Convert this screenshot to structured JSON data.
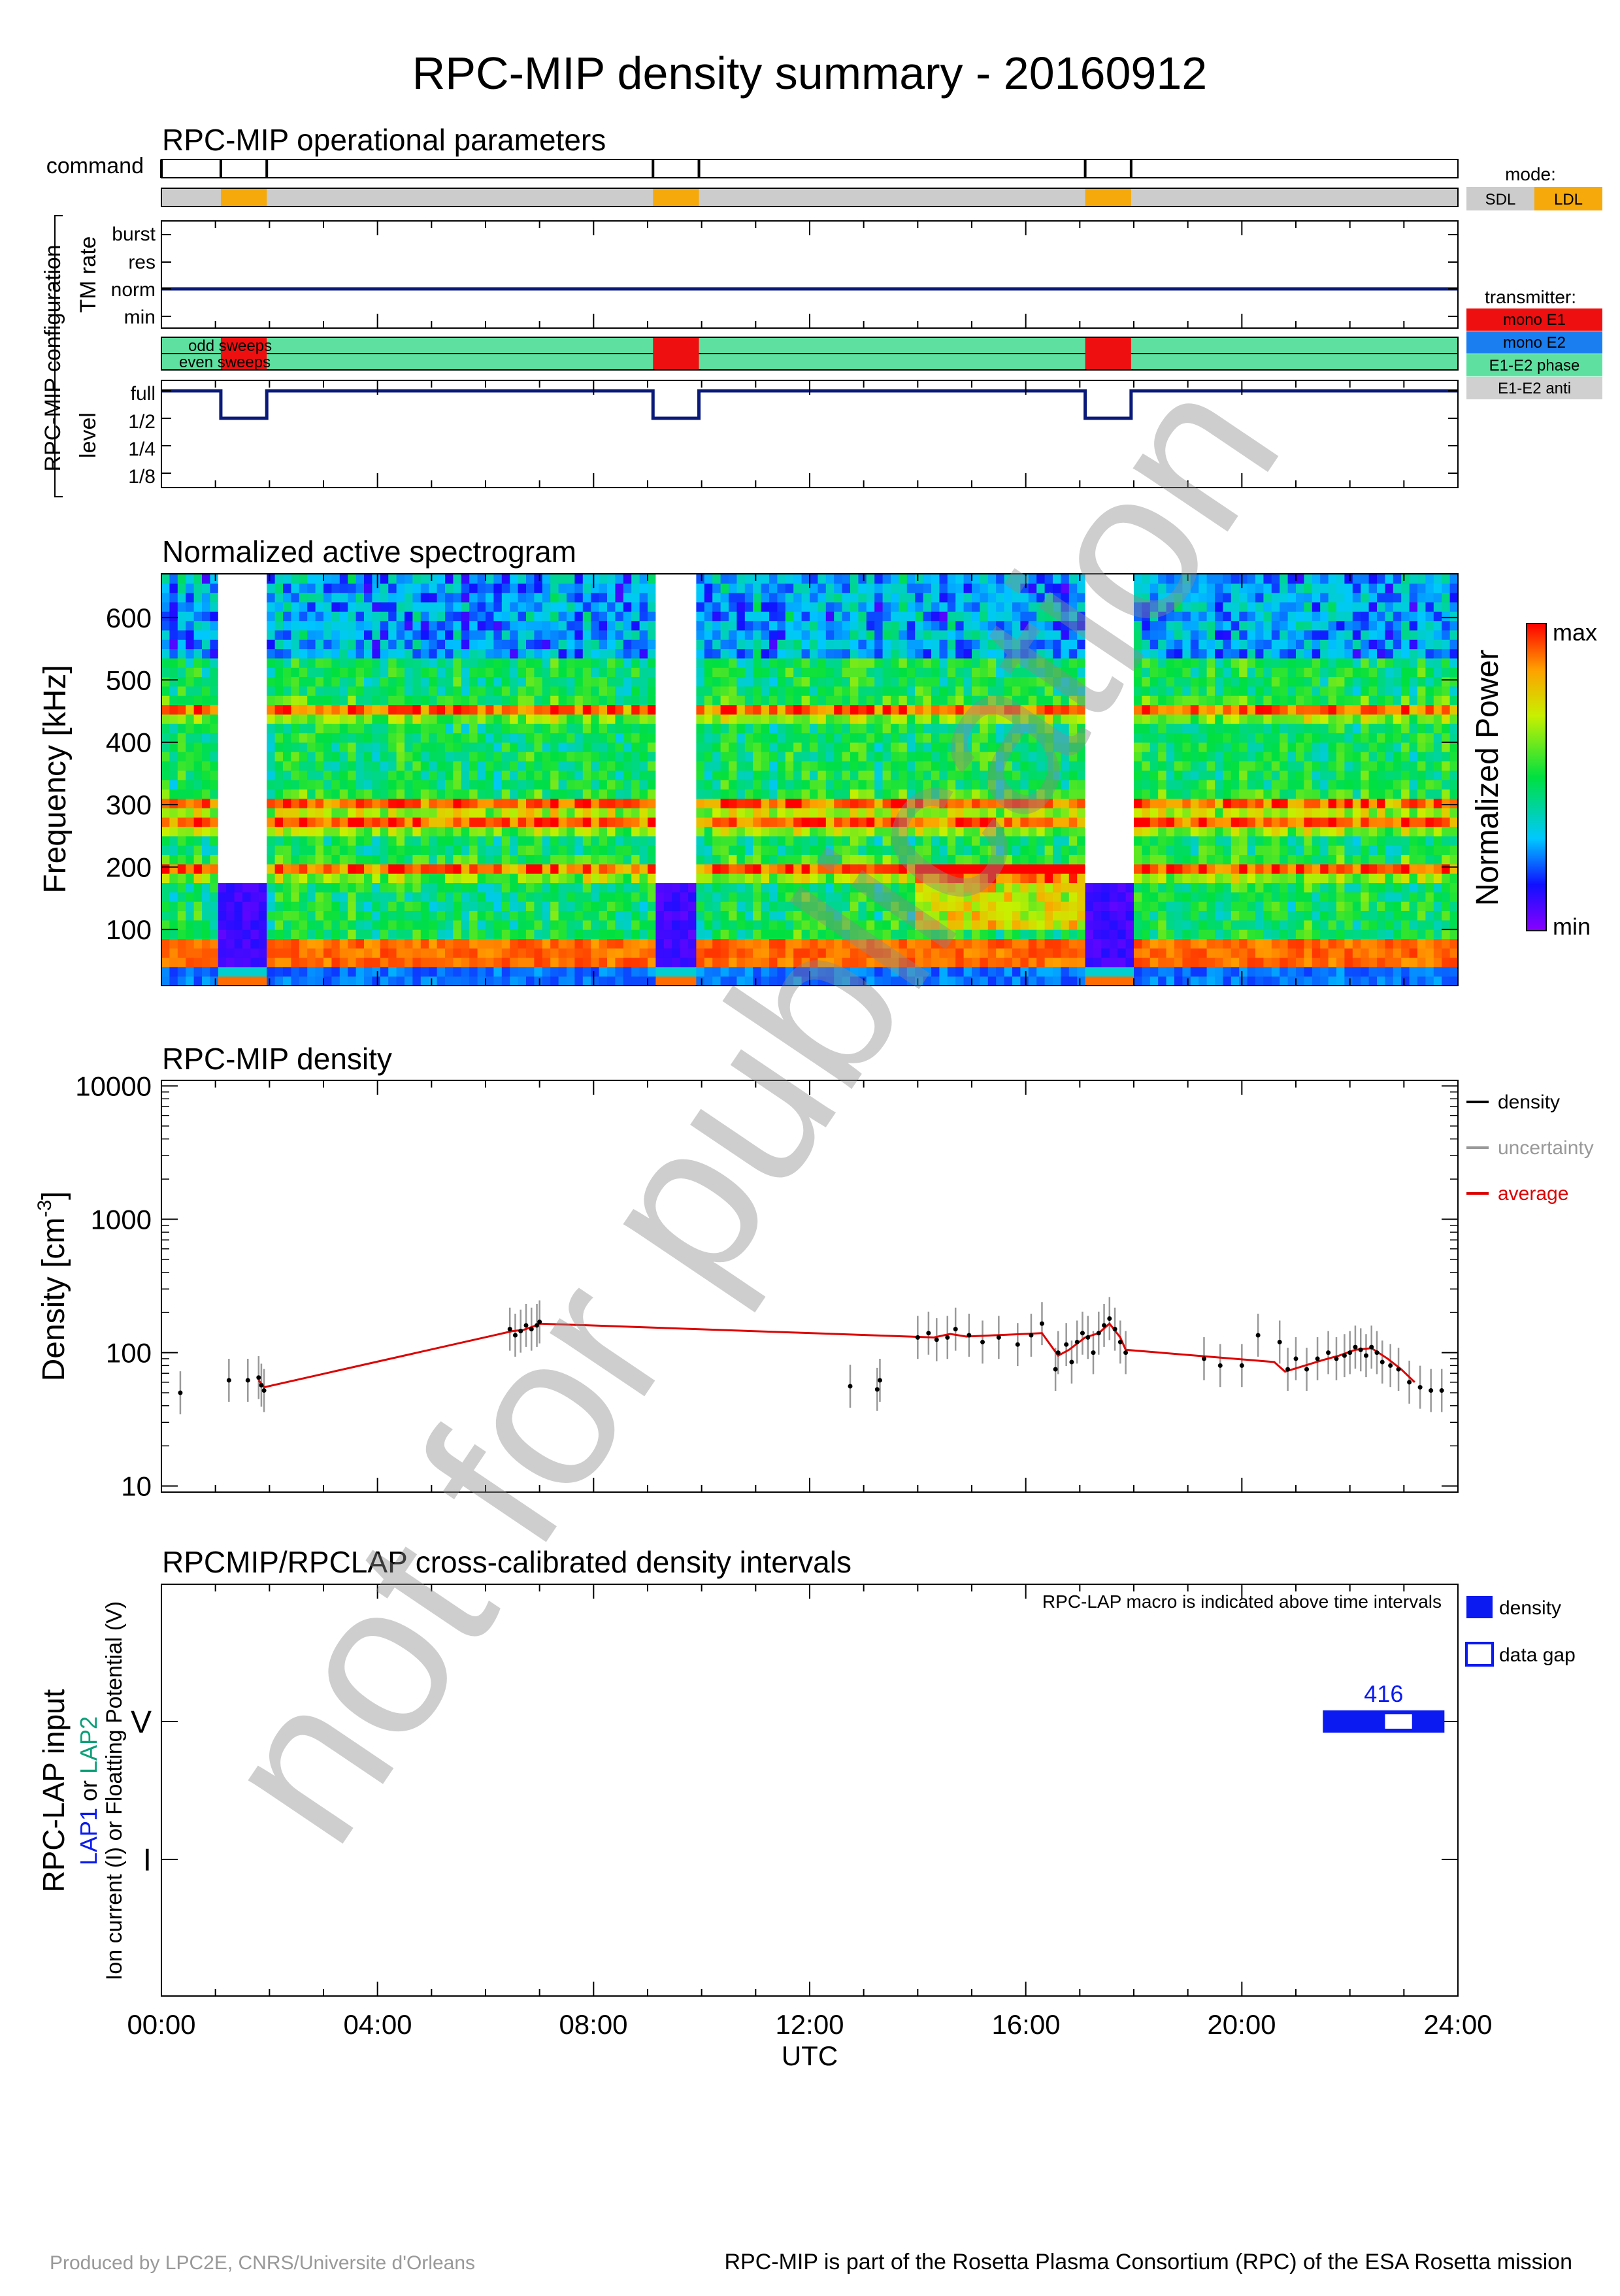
{
  "title": "RPC-MIP density summary - 20160912",
  "watermark": "not for publication",
  "footer": {
    "left": "Produced by LPC2E, CNRS/Universite d'Orleans",
    "right": "RPC-MIP is part of the Rosetta Plasma Consortium (RPC) of the ESA Rosetta mission"
  },
  "colors": {
    "sdl": "#cccccc",
    "ldl": "#f5a90a",
    "navy": "#0a1a7a",
    "mono_e1": "#ee1010",
    "mono_e2": "#1a7ef0",
    "e1e2_phase": "#5de0a0",
    "e1e2_anti": "#d0d0d0",
    "density": "#000000",
    "uncertainty": "#999999",
    "average": "#dd0000",
    "lap_density": "#0a1af0"
  },
  "ops": {
    "title": "RPC-MIP operational parameters",
    "command_label": "command",
    "group_label": "RPC-MIP configuration",
    "tm_rate_label": "TM rate",
    "tm_levels": [
      "burst",
      "res",
      "norm",
      "min"
    ],
    "sweeps": [
      "odd sweeps",
      "even sweeps"
    ],
    "level_label": "level",
    "levels": [
      "full",
      "1/2",
      "1/4",
      "1/8"
    ],
    "mode_title": "mode:",
    "modes": [
      "SDL",
      "LDL"
    ],
    "transmitter_title": "transmitter:",
    "transmitters": [
      "mono E1",
      "mono E2",
      "E1-E2 phase",
      "E1-E2 anti"
    ]
  },
  "spec": {
    "title": "Normalized active spectrogram",
    "ylabel": "Frequency [kHz]",
    "yticks": [
      "100",
      "200",
      "300",
      "400",
      "500",
      "600"
    ],
    "colorbar_label": "Normalized Power",
    "colorbar_max": "max",
    "colorbar_min": "min"
  },
  "density": {
    "title": "RPC-MIP density",
    "ylabel": "Density [cm",
    "ylabel_sup": "-3",
    "ylabel_end": "]",
    "yticks": [
      "10",
      "100",
      "1000",
      "10000"
    ],
    "legend": [
      "density",
      "uncertainty",
      "average"
    ]
  },
  "lap": {
    "title": "RPCMIP/RPCLAP cross-calibrated density intervals",
    "note": "RPC-LAP macro is indicated above time intervals",
    "ylabel1": "RPC-LAP input",
    "ylabel2_a": "LAP1",
    "ylabel2_b": " or ",
    "ylabel2_c": "LAP2",
    "ylabel3": "Ion current (I) or Floatting Potential (V)",
    "yticks": [
      "V",
      "I"
    ],
    "legend": [
      "density",
      "data gap"
    ],
    "macro_label": "416"
  },
  "xaxis": {
    "ticks": [
      "00:00",
      "04:00",
      "08:00",
      "12:00",
      "16:00",
      "20:00",
      "24:00"
    ],
    "label": "UTC"
  },
  "chart_data": [
    {
      "type": "timeline",
      "title": "RPC-MIP operational parameters",
      "x_unit": "hours UTC",
      "xlim": [
        0,
        24
      ],
      "commands_h": [
        0,
        1.1,
        1.95,
        9.1,
        9.95,
        17.1,
        17.95
      ],
      "ldl_intervals_h": [
        [
          1.1,
          1.95
        ],
        [
          9.1,
          9.95
        ],
        [
          17.1,
          17.95
        ]
      ],
      "tm_rate": "norm",
      "transmitter_default": "E1-E2 phase",
      "mono_e1_intervals_h": [
        [
          1.1,
          1.95
        ],
        [
          9.1,
          9.95
        ],
        [
          17.1,
          17.95
        ]
      ],
      "level_default": "full",
      "level_half_intervals_h": [
        [
          1.1,
          1.95
        ],
        [
          9.1,
          9.95
        ],
        [
          17.1,
          17.95
        ]
      ]
    },
    {
      "type": "heatmap",
      "title": "Normalized active spectrogram",
      "x_unit": "hours UTC",
      "xlim": [
        0,
        24
      ],
      "ylabel": "Frequency [kHz]",
      "ylim": [
        10,
        670
      ],
      "no_data_intervals_h": [
        [
          1.1,
          1.95
        ],
        [
          9.1,
          9.95
        ],
        [
          17.1,
          17.95
        ]
      ],
      "ldl_spectrum_max_khz": 170,
      "enhanced_bands_khz": [
        50,
        70,
        195,
        270,
        300,
        450
      ],
      "colorbar": [
        "min",
        "max"
      ]
    },
    {
      "type": "scatter",
      "title": "RPC-MIP density",
      "x_unit": "hours UTC",
      "xlim": [
        0,
        24
      ],
      "ylabel": "Density [cm-3]",
      "yscale": "log",
      "ylim": [
        9,
        11000
      ],
      "series": [
        {
          "name": "density",
          "points": [
            [
              0.35,
              50
            ],
            [
              1.25,
              62
            ],
            [
              1.6,
              62
            ],
            [
              1.8,
              65
            ],
            [
              1.85,
              57
            ],
            [
              1.9,
              52
            ],
            [
              6.45,
              150
            ],
            [
              6.55,
              135
            ],
            [
              6.65,
              145
            ],
            [
              6.75,
              160
            ],
            [
              6.85,
              150
            ],
            [
              6.95,
              160
            ],
            [
              7.0,
              170
            ],
            [
              12.75,
              56
            ],
            [
              13.25,
              53
            ],
            [
              13.3,
              62
            ],
            [
              14.0,
              130
            ],
            [
              14.2,
              140
            ],
            [
              14.35,
              125
            ],
            [
              14.55,
              130
            ],
            [
              14.7,
              150
            ],
            [
              14.95,
              135
            ],
            [
              15.2,
              120
            ],
            [
              15.5,
              130
            ],
            [
              15.85,
              115
            ],
            [
              16.1,
              135
            ],
            [
              16.3,
              165
            ],
            [
              16.55,
              75
            ],
            [
              16.6,
              100
            ],
            [
              16.75,
              115
            ],
            [
              16.85,
              85
            ],
            [
              16.95,
              120
            ],
            [
              17.05,
              140
            ],
            [
              17.15,
              130
            ],
            [
              17.25,
              100
            ],
            [
              17.35,
              140
            ],
            [
              17.45,
              160
            ],
            [
              17.55,
              180
            ],
            [
              17.65,
              150
            ],
            [
              17.75,
              120
            ],
            [
              17.85,
              100
            ],
            [
              19.3,
              90
            ],
            [
              19.6,
              80
            ],
            [
              20.0,
              80
            ],
            [
              20.3,
              135
            ],
            [
              20.7,
              120
            ],
            [
              20.85,
              75
            ],
            [
              21.0,
              90
            ],
            [
              21.2,
              75
            ],
            [
              21.4,
              90
            ],
            [
              21.6,
              100
            ],
            [
              21.75,
              90
            ],
            [
              21.9,
              95
            ],
            [
              22.0,
              100
            ],
            [
              22.1,
              110
            ],
            [
              22.2,
              105
            ],
            [
              22.3,
              95
            ],
            [
              22.4,
              110
            ],
            [
              22.5,
              100
            ],
            [
              22.6,
              85
            ],
            [
              22.75,
              80
            ],
            [
              22.9,
              75
            ],
            [
              23.1,
              60
            ],
            [
              23.3,
              55
            ],
            [
              23.5,
              52
            ],
            [
              23.7,
              52
            ]
          ]
        },
        {
          "name": "average",
          "points": [
            [
              1.8,
              62
            ],
            [
              1.9,
              55
            ],
            [
              6.5,
              145
            ],
            [
              6.7,
              148
            ],
            [
              6.9,
              158
            ],
            [
              7.0,
              165
            ],
            [
              14.3,
              130
            ],
            [
              14.6,
              138
            ],
            [
              14.9,
              132
            ],
            [
              16.3,
              140
            ],
            [
              16.6,
              95
            ],
            [
              16.8,
              105
            ],
            [
              17.1,
              130
            ],
            [
              17.35,
              140
            ],
            [
              17.55,
              165
            ],
            [
              17.75,
              130
            ],
            [
              17.85,
              105
            ],
            [
              20.6,
              85
            ],
            [
              20.8,
              72
            ],
            [
              21.5,
              88
            ],
            [
              21.8,
              95
            ],
            [
              22.1,
              105
            ],
            [
              22.4,
              108
            ],
            [
              22.7,
              90
            ],
            [
              22.95,
              75
            ],
            [
              23.2,
              60
            ]
          ]
        }
      ]
    },
    {
      "type": "timeline",
      "title": "RPCMIP/RPCLAP cross-calibrated density intervals",
      "x_unit": "hours UTC",
      "xlim": [
        0,
        24
      ],
      "rows": [
        "V",
        "I"
      ],
      "intervals": [
        {
          "row": "V",
          "start_h": 21.5,
          "end_h": 23.75,
          "probe": "LAP1",
          "macro": "416",
          "gaps_h": [
            [
              22.65,
              23.15
            ]
          ]
        }
      ]
    }
  ]
}
